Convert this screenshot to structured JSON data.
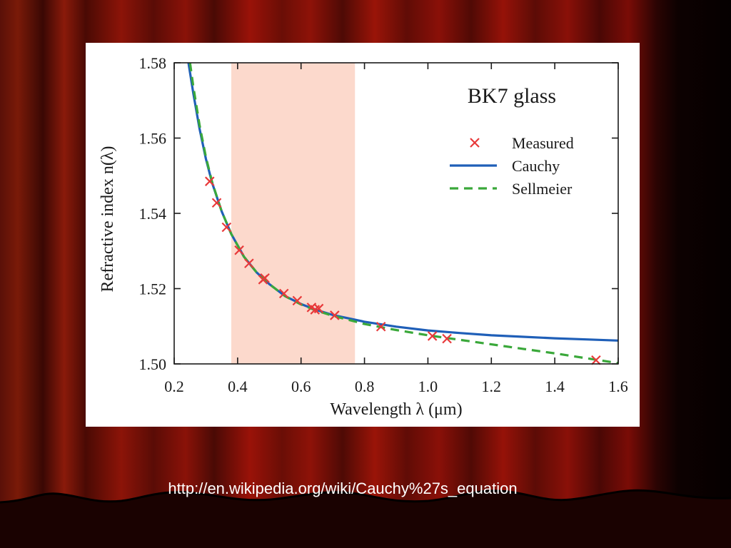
{
  "source_url": "http://en.wikipedia.org/wiki/Cauchy%27s_equation",
  "colors": {
    "curtain_red": "#8a1208",
    "measured": "#e8393a",
    "cauchy": "#1f5fb8",
    "sellmeier": "#3aa83a",
    "visible_band": "#fcd9cc"
  },
  "chart_data": {
    "type": "line",
    "title": "BK7 glass",
    "xlabel": "Wavelength λ (μm)",
    "ylabel": "Refractive index n(λ)",
    "xlim": [
      0.2,
      1.6
    ],
    "ylim": [
      1.5,
      1.58
    ],
    "x_ticks": [
      0.2,
      0.4,
      0.6,
      0.8,
      1.0,
      1.2,
      1.4,
      1.6
    ],
    "x_tick_labels": [
      "0.2",
      "0.4",
      "0.6",
      "0.8",
      "1.0",
      "1.2",
      "1.4",
      "1.6"
    ],
    "y_ticks": [
      1.5,
      1.52,
      1.54,
      1.56,
      1.58
    ],
    "y_tick_labels": [
      "1.50",
      "1.52",
      "1.54",
      "1.56",
      "1.58"
    ],
    "grid": false,
    "legend_position": "top-right",
    "shaded_band": {
      "x_start": 0.38,
      "x_end": 0.77
    },
    "series": [
      {
        "name": "Measured",
        "kind": "scatter",
        "marker": "x",
        "color": "#e8393a",
        "x": [
          0.312,
          0.334,
          0.365,
          0.405,
          0.436,
          0.48,
          0.486,
          0.546,
          0.588,
          0.633,
          0.644,
          0.656,
          0.706,
          0.852,
          1.014,
          1.06,
          1.53
        ],
        "y": [
          1.5485,
          1.5428,
          1.5363,
          1.5302,
          1.5267,
          1.5224,
          1.5228,
          1.5187,
          1.5168,
          1.515,
          1.5144,
          1.5147,
          1.5129,
          1.5099,
          1.5074,
          1.5067,
          1.501
        ]
      },
      {
        "name": "Cauchy",
        "kind": "line",
        "style": "solid",
        "color": "#1f5fb8",
        "x": [
          0.245,
          0.26,
          0.28,
          0.3,
          0.32,
          0.35,
          0.38,
          0.42,
          0.46,
          0.5,
          0.55,
          0.6,
          0.65,
          0.7,
          0.8,
          0.9,
          1.0,
          1.1,
          1.2,
          1.3,
          1.4,
          1.5,
          1.6
        ],
        "y": [
          1.58,
          1.572,
          1.5625,
          1.5545,
          1.548,
          1.5405,
          1.5345,
          1.5285,
          1.5243,
          1.5212,
          1.518,
          1.5159,
          1.5143,
          1.513,
          1.5112,
          1.5099,
          1.5089,
          1.5082,
          1.5076,
          1.5072,
          1.5068,
          1.5065,
          1.5062
        ]
      },
      {
        "name": "Sellmeier",
        "kind": "line",
        "style": "dashed",
        "color": "#3aa83a",
        "x": [
          0.25,
          0.26,
          0.28,
          0.3,
          0.32,
          0.35,
          0.38,
          0.42,
          0.46,
          0.5,
          0.55,
          0.6,
          0.65,
          0.7,
          0.8,
          0.9,
          1.0,
          1.1,
          1.2,
          1.3,
          1.4,
          1.5,
          1.6
        ],
        "y": [
          1.58,
          1.5738,
          1.5635,
          1.555,
          1.5482,
          1.5405,
          1.5345,
          1.5285,
          1.5243,
          1.5212,
          1.518,
          1.5158,
          1.5141,
          1.5128,
          1.5106,
          1.509,
          1.5076,
          1.5064,
          1.5052,
          1.504,
          1.5028,
          1.5015,
          1.5002
        ]
      }
    ]
  }
}
